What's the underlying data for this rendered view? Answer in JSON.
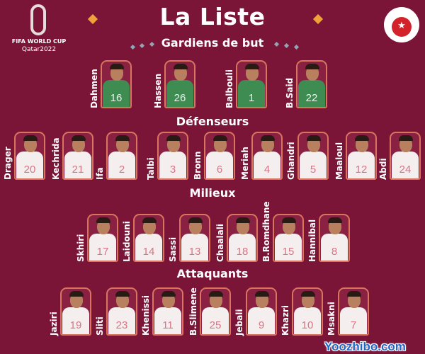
{
  "title": "La Liste",
  "logo_left": {
    "line1": "FIFA WORLD CUP",
    "line2": "Qatar2022"
  },
  "crest": {
    "text": "Fédération Tunisienne de Football"
  },
  "watermark": "Yoozhibo.com",
  "colors": {
    "background": "#7b1537",
    "accent": "#f0a23a",
    "frame": "#d9755c",
    "gk_jersey": "#3e8c52",
    "number": "#d77585"
  },
  "sections": [
    {
      "title": "Gardiens de but",
      "goalkeepers": true,
      "players": [
        {
          "name": "Dahmen",
          "number": "16"
        },
        {
          "name": "Hassen",
          "number": "26"
        },
        {
          "name": "Balbouli",
          "number": "1"
        },
        {
          "name": "B.Said",
          "number": "22"
        }
      ]
    },
    {
      "title": "Défenseurs",
      "players": [
        {
          "name": "Drager",
          "number": "20"
        },
        {
          "name": "Kechrida",
          "number": "21"
        },
        {
          "name": "Ifa",
          "number": "2"
        },
        {
          "name": "Talbi",
          "number": "3"
        },
        {
          "name": "Bronn",
          "number": "6"
        },
        {
          "name": "Meriah",
          "number": "4"
        },
        {
          "name": "Ghandri",
          "number": "5"
        },
        {
          "name": "Maaloul",
          "number": "12"
        },
        {
          "name": "Abdi",
          "number": "24"
        }
      ]
    },
    {
      "title": "Milieux",
      "players": [
        {
          "name": "Skhiri",
          "number": "17"
        },
        {
          "name": "Laidouni",
          "number": "14"
        },
        {
          "name": "Sassi",
          "number": "13"
        },
        {
          "name": "Chaalali",
          "number": "18"
        },
        {
          "name": "B.Romdhane",
          "number": "15"
        },
        {
          "name": "Hannibal",
          "number": "8"
        }
      ]
    },
    {
      "title": "Attaquants",
      "players": [
        {
          "name": "Jaziri",
          "number": "19"
        },
        {
          "name": "Sliti",
          "number": "23"
        },
        {
          "name": "Khenissi",
          "number": "11"
        },
        {
          "name": "B.Slimene",
          "number": "25"
        },
        {
          "name": "Jebali",
          "number": "9"
        },
        {
          "name": "Khazri",
          "number": "10"
        },
        {
          "name": "Msakni",
          "number": "7"
        }
      ]
    }
  ]
}
